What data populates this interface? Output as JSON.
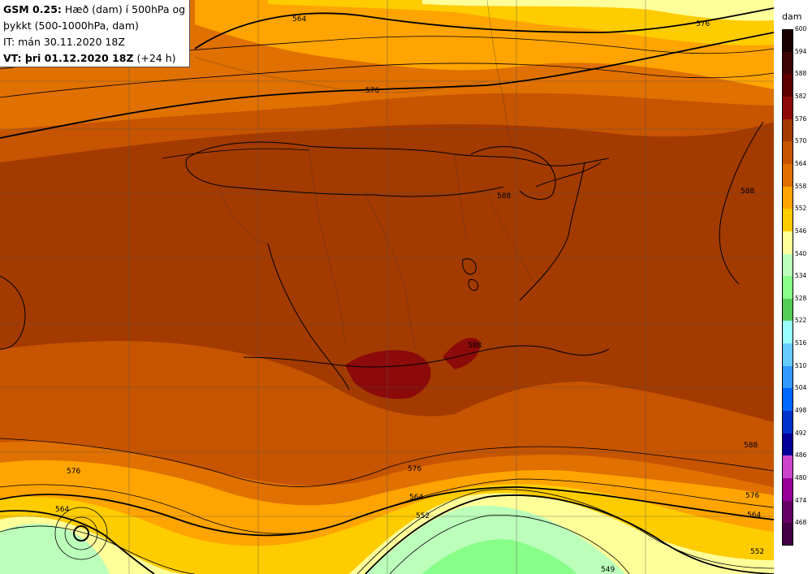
{
  "header": {
    "model": "GSM 0.25:",
    "line1_rest": "Hæð (dam) í 500hPa og",
    "line2": "þykkt (500-1000hPa, dam)",
    "line3": "IT: mán 30.11.2020 18Z",
    "vt_label": "VT: þri 01.12.2020 18Z",
    "vt_offset": "(+24 h)"
  },
  "legend": {
    "unit": "dam",
    "levels": [
      "600",
      "594",
      "588",
      "582",
      "576",
      "570",
      "564",
      "558",
      "552",
      "546",
      "540",
      "534",
      "528",
      "522",
      "516",
      "510",
      "504",
      "498",
      "492",
      "486",
      "480",
      "474",
      "468"
    ],
    "colors": [
      "#1a0000",
      "#3d0505",
      "#5e0000",
      "#8c0a0a",
      "#a33a00",
      "#c65400",
      "#e07000",
      "#ffa400",
      "#ffcc00",
      "#ffff99",
      "#bbffbb",
      "#88ff88",
      "#55cc55",
      "#99ffff",
      "#66ccff",
      "#3399ff",
      "#0066ff",
      "#0033cc",
      "#000099",
      "#cc44cc",
      "#990099",
      "#660066",
      "#440044"
    ]
  },
  "contour_labels": [
    "564",
    "576",
    "576",
    "588",
    "588",
    "588",
    "588",
    "576",
    "564",
    "552",
    "576",
    "564",
    "552",
    "564",
    "576",
    "549"
  ]
}
